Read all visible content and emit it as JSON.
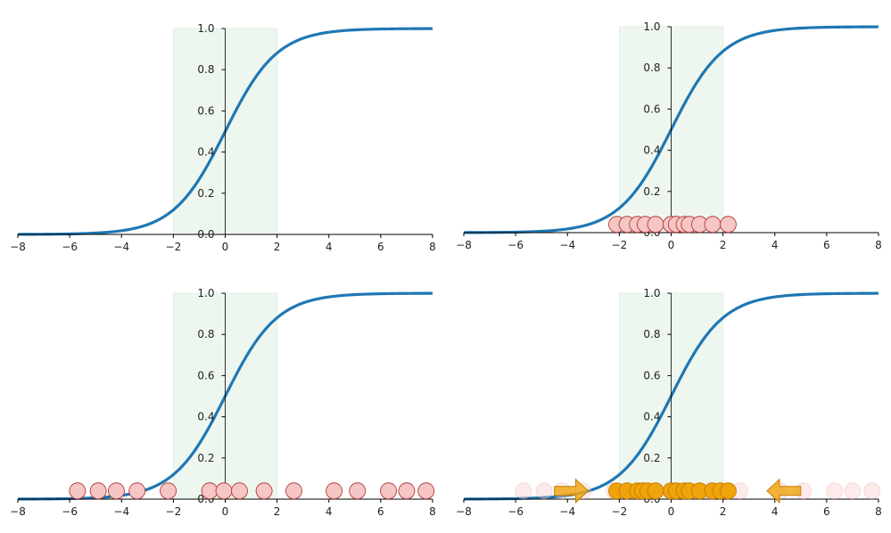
{
  "chart_data": [
    {
      "type": "line",
      "function": "sigmoid",
      "xlim": [
        -8,
        8
      ],
      "ylim": [
        0,
        1
      ],
      "xticks": [
        -8,
        -6,
        -4,
        -2,
        0,
        2,
        4,
        6,
        8
      ],
      "yticks": [
        0.0,
        0.2,
        0.4,
        0.6,
        0.8,
        1.0
      ],
      "xtick_labels": [
        "−8",
        "−6",
        "−4",
        "−2",
        "0",
        "2",
        "4",
        "6",
        "8"
      ],
      "ytick_labels": [
        "0.0",
        "0.2",
        "0.4",
        "0.6",
        "0.8",
        "1.0"
      ],
      "shaded_region": [
        -2,
        2
      ],
      "points": [],
      "faded_points": [],
      "arrows": []
    },
    {
      "type": "scatter",
      "function": "sigmoid",
      "xlim": [
        -8,
        8
      ],
      "ylim": [
        0,
        1
      ],
      "xticks": [
        -8,
        -6,
        -4,
        -2,
        0,
        2,
        4,
        6,
        8
      ],
      "yticks": [
        0.0,
        0.2,
        0.4,
        0.6,
        0.8,
        1.0
      ],
      "xtick_labels": [
        "−8",
        "−6",
        "−4",
        "−2",
        "0",
        "2",
        "4",
        "6",
        "8"
      ],
      "ytick_labels": [
        "0.0",
        "0.2",
        "0.4",
        "0.6",
        "0.8",
        "1.0"
      ],
      "shaded_region": [
        -2,
        2
      ],
      "points": [
        -2.1,
        -1.7,
        -1.3,
        -1.0,
        -0.6,
        0.0,
        0.2,
        0.5,
        0.7,
        1.1,
        1.6,
        2.2
      ],
      "points_y": 0.04,
      "point_color": "#f5c6c4",
      "faded_points": [],
      "arrows": []
    },
    {
      "type": "scatter",
      "function": "sigmoid",
      "xlim": [
        -8,
        8
      ],
      "ylim": [
        0,
        1
      ],
      "xticks": [
        -8,
        -6,
        -4,
        -2,
        0,
        2,
        4,
        6,
        8
      ],
      "yticks": [
        0.0,
        0.2,
        0.4,
        0.6,
        0.8,
        1.0
      ],
      "xtick_labels": [
        "−8",
        "−6",
        "−4",
        "−2",
        "0",
        "2",
        "4",
        "6",
        "8"
      ],
      "ytick_labels": [
        "0.0",
        "0.2",
        "0.4",
        "0.6",
        "0.8",
        "1.0"
      ],
      "shaded_region": [
        -2,
        2
      ],
      "points": [
        -5.7,
        -4.9,
        -4.2,
        -3.4,
        -2.2,
        -0.6,
        -0.05,
        0.55,
        1.5,
        2.65,
        4.2,
        5.1,
        6.3,
        7.0,
        7.75
      ],
      "points_y": 0.04,
      "point_color": "#f5c6c4",
      "faded_points": [],
      "arrows": []
    },
    {
      "type": "scatter",
      "function": "sigmoid",
      "xlim": [
        -8,
        8
      ],
      "ylim": [
        0,
        1
      ],
      "xticks": [
        -8,
        -6,
        -4,
        -2,
        0,
        2,
        4,
        6,
        8
      ],
      "yticks": [
        0.0,
        0.2,
        0.4,
        0.6,
        0.8,
        1.0
      ],
      "xtick_labels": [
        "−8",
        "−6",
        "−4",
        "−2",
        "0",
        "2",
        "4",
        "6",
        "8"
      ],
      "ytick_labels": [
        "0.0",
        "0.2",
        "0.4",
        "0.6",
        "0.8",
        "1.0"
      ],
      "shaded_region": [
        -2,
        2
      ],
      "faded_points": [
        -5.7,
        -4.9,
        -4.2,
        -3.4,
        -2.2,
        -0.6,
        -0.05,
        0.55,
        1.5,
        2.65,
        4.2,
        5.1,
        6.3,
        7.0,
        7.75
      ],
      "faded_color": "#f5c6c4",
      "points": [
        -2.1,
        -1.7,
        -1.3,
        -1.1,
        -0.9,
        -0.6,
        0.0,
        0.2,
        0.5,
        0.7,
        1.1,
        1.6,
        1.9,
        2.2
      ],
      "points_y": 0.04,
      "point_color": "#f0a30a",
      "arrows": [
        {
          "from": -4.5,
          "to": -3.2,
          "direction": "right"
        },
        {
          "from": 5.0,
          "to": 3.7,
          "direction": "left"
        }
      ]
    }
  ],
  "colors": {
    "curve": "#1f77b4",
    "shade": "#e8f5e9",
    "shade_edge": "#c8e6c9",
    "axis": "#000000",
    "arrow": "#f0a30a",
    "arrow_edge": "#c77f00"
  }
}
